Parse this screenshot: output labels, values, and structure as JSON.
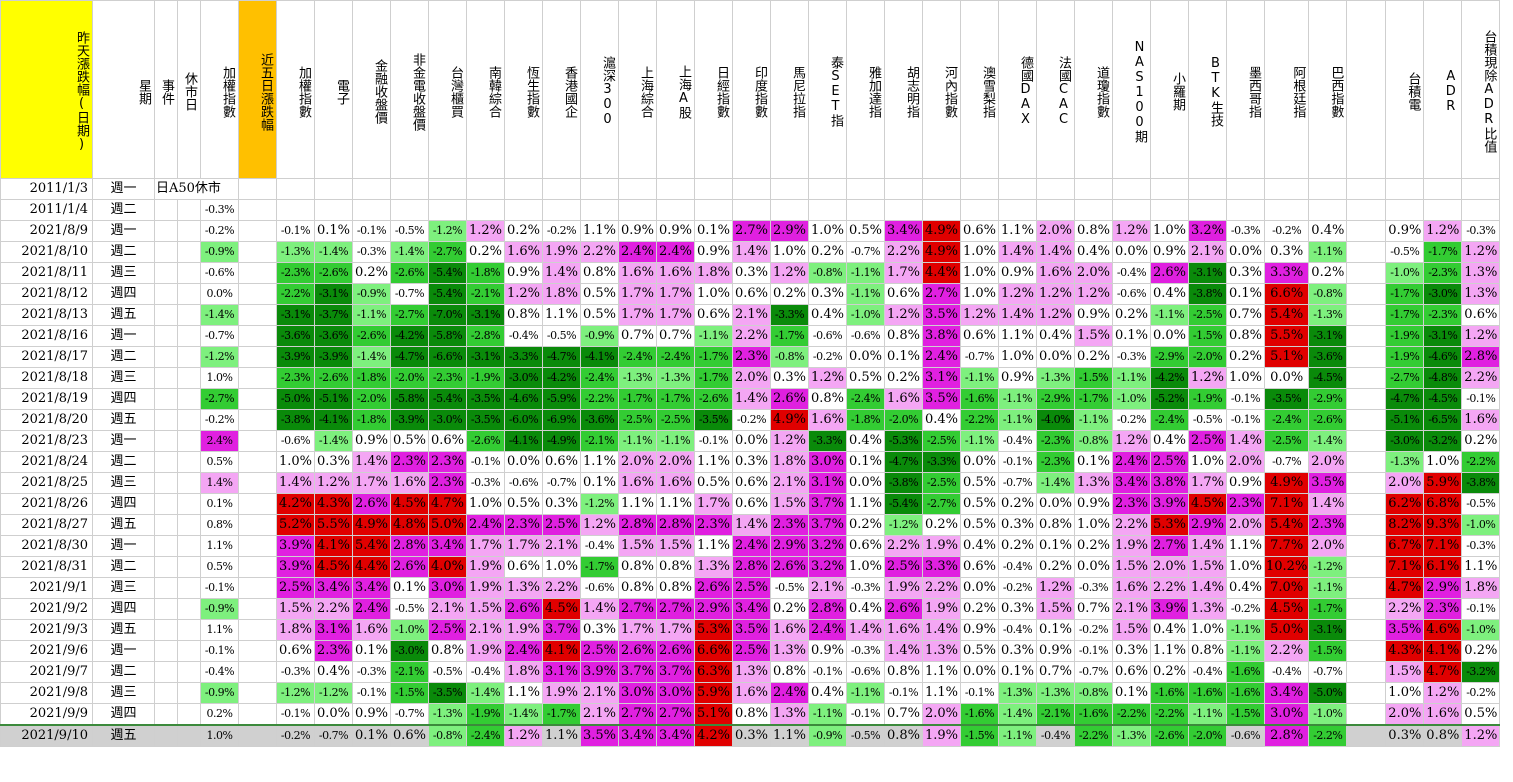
{
  "colors": {
    "red": "#ff0000",
    "dark_red": "#e00000",
    "magenta": "#e020e0",
    "pink": "#f4a6f4",
    "light_green": "#7ef07e",
    "green": "#33cc33",
    "dark_green": "#0a8a0a",
    "yellow_header": "#ffff00",
    "orange_header": "#ffc000",
    "gray_row": "#d0d0d0"
  },
  "headers": [
    "昨天漲跌幅(日期)",
    "星期",
    "事件",
    "休市日",
    "加權指數",
    "近五日漲跌幅",
    "加權指數",
    "電子",
    "金融收盤價",
    "非金電收盤價",
    "台灣櫃買",
    "南韓綜合",
    "恆生指數",
    "香港國企",
    "滬深300",
    "上海綜合",
    "上海A股",
    "日經指數",
    "印度指數",
    "馬尼拉指",
    "泰SET指",
    "雅加達指",
    "胡志明指",
    "河內指數",
    "澳雪梨指",
    "德國DAX",
    "法國CAC",
    "道瓊指數",
    "NAS100期",
    "小羅期",
    "BTK生技",
    "墨西哥指",
    "阿根廷指",
    "巴西指數",
    "",
    "台積電",
    "ADR",
    "台積現除ADR比值"
  ],
  "rows": [
    {
      "date": "2011/1/3",
      "wd": "週一",
      "event": "日A50休市",
      "idx": "",
      "vals": []
    },
    {
      "date": "2011/1/4",
      "wd": "週二",
      "event": "",
      "idx": "-0.3%",
      "vals": []
    },
    {
      "date": "2021/8/9",
      "wd": "週一",
      "event": "",
      "idx": "-0.2%",
      "vals": [
        "-0.1%",
        "0.1%",
        "-0.1%",
        "-0.5%",
        "-1.2%",
        "1.2%",
        "0.2%",
        "-0.2%",
        "1.1%",
        "0.9%",
        "0.9%",
        "0.1%",
        "2.7%",
        "2.9%",
        "1.0%",
        "0.5%",
        "3.4%",
        "4.9%",
        "0.6%",
        "1.1%",
        "2.0%",
        "0.8%",
        "1.2%",
        "1.0%",
        "3.2%",
        "-0.3%",
        "-0.2%",
        "0.4%",
        "",
        "0.9%",
        "1.2%",
        "-0.3%"
      ]
    },
    {
      "date": "2021/8/10",
      "wd": "週二",
      "event": "",
      "idx": "-0.9%",
      "vals": [
        "-1.3%",
        "-1.4%",
        "-0.3%",
        "-1.4%",
        "-2.7%",
        "0.2%",
        "1.6%",
        "1.9%",
        "2.2%",
        "2.4%",
        "2.4%",
        "0.9%",
        "1.4%",
        "1.0%",
        "0.2%",
        "-0.7%",
        "2.2%",
        "4.9%",
        "1.0%",
        "1.4%",
        "1.4%",
        "0.4%",
        "0.0%",
        "0.9%",
        "2.1%",
        "0.0%",
        "0.3%",
        "-1.1%",
        "",
        "-0.5%",
        "-1.7%",
        "1.2%"
      ]
    },
    {
      "date": "2021/8/11",
      "wd": "週三",
      "event": "",
      "idx": "-0.6%",
      "vals": [
        "-2.3%",
        "-2.6%",
        "0.2%",
        "-2.6%",
        "-5.4%",
        "-1.8%",
        "0.9%",
        "1.4%",
        "0.8%",
        "1.6%",
        "1.6%",
        "1.8%",
        "0.3%",
        "1.2%",
        "-0.8%",
        "-1.1%",
        "1.7%",
        "4.4%",
        "1.0%",
        "0.9%",
        "1.6%",
        "2.0%",
        "-0.4%",
        "2.6%",
        "-3.1%",
        "0.3%",
        "3.3%",
        "0.2%",
        "",
        "-1.0%",
        "-2.3%",
        "1.3%"
      ]
    },
    {
      "date": "2021/8/12",
      "wd": "週四",
      "event": "",
      "idx": "0.0%",
      "vals": [
        "-2.2%",
        "-3.1%",
        "-0.9%",
        "-0.7%",
        "-5.4%",
        "-2.1%",
        "1.2%",
        "1.8%",
        "0.5%",
        "1.7%",
        "1.7%",
        "1.0%",
        "0.6%",
        "0.2%",
        "0.3%",
        "-1.1%",
        "0.6%",
        "2.7%",
        "1.0%",
        "1.2%",
        "1.2%",
        "1.2%",
        "-0.6%",
        "0.4%",
        "-3.8%",
        "0.1%",
        "6.6%",
        "-0.8%",
        "",
        "-1.7%",
        "-3.0%",
        "1.3%"
      ]
    },
    {
      "date": "2021/8/13",
      "wd": "週五",
      "event": "",
      "idx": "-1.4%",
      "vals": [
        "-3.1%",
        "-3.7%",
        "-1.1%",
        "-2.7%",
        "-7.0%",
        "-3.1%",
        "0.8%",
        "1.1%",
        "0.5%",
        "1.7%",
        "1.7%",
        "0.6%",
        "2.1%",
        "-3.3%",
        "0.4%",
        "-1.0%",
        "1.2%",
        "3.5%",
        "1.2%",
        "1.4%",
        "1.2%",
        "0.9%",
        "0.2%",
        "-1.1%",
        "-2.5%",
        "0.7%",
        "5.4%",
        "-1.3%",
        "",
        "-1.7%",
        "-2.3%",
        "0.6%"
      ]
    },
    {
      "date": "2021/8/16",
      "wd": "週一",
      "event": "",
      "idx": "-0.7%",
      "vals": [
        "-3.6%",
        "-3.6%",
        "-2.6%",
        "-4.2%",
        "-5.8%",
        "-2.8%",
        "-0.4%",
        "-0.5%",
        "-0.9%",
        "0.7%",
        "0.7%",
        "-1.1%",
        "2.2%",
        "-1.7%",
        "-0.6%",
        "-0.6%",
        "0.8%",
        "3.8%",
        "0.6%",
        "1.1%",
        "0.4%",
        "1.5%",
        "0.1%",
        "0.0%",
        "-1.5%",
        "0.8%",
        "5.5%",
        "-3.1%",
        "",
        "-1.9%",
        "-3.1%",
        "1.2%"
      ]
    },
    {
      "date": "2021/8/17",
      "wd": "週二",
      "event": "",
      "idx": "-1.2%",
      "vals": [
        "-3.9%",
        "-3.9%",
        "-1.4%",
        "-4.7%",
        "-6.6%",
        "-3.1%",
        "-3.3%",
        "-4.7%",
        "-4.1%",
        "-2.4%",
        "-2.4%",
        "-1.7%",
        "2.3%",
        "-0.8%",
        "-0.2%",
        "0.0%",
        "0.1%",
        "2.4%",
        "-0.7%",
        "1.0%",
        "0.0%",
        "0.2%",
        "-0.3%",
        "-2.9%",
        "-2.0%",
        "0.2%",
        "5.1%",
        "-3.6%",
        "",
        "-1.9%",
        "-4.6%",
        "2.8%"
      ]
    },
    {
      "date": "2021/8/18",
      "wd": "週三",
      "event": "",
      "idx": "1.0%",
      "vals": [
        "-2.3%",
        "-2.6%",
        "-1.8%",
        "-2.0%",
        "-2.3%",
        "-1.9%",
        "-3.0%",
        "-4.2%",
        "-2.4%",
        "-1.3%",
        "-1.3%",
        "-1.7%",
        "2.0%",
        "0.3%",
        "1.2%",
        "0.5%",
        "0.2%",
        "3.1%",
        "-1.1%",
        "0.9%",
        "-1.3%",
        "-1.5%",
        "-1.1%",
        "-4.2%",
        "1.2%",
        "1.0%",
        "0.0%",
        "-4.5%",
        "",
        "-2.7%",
        "-4.8%",
        "2.2%"
      ]
    },
    {
      "date": "2021/8/19",
      "wd": "週四",
      "event": "",
      "idx": "-2.7%",
      "vals": [
        "-5.0%",
        "-5.1%",
        "-2.0%",
        "-5.8%",
        "-5.4%",
        "-3.5%",
        "-4.6%",
        "-5.9%",
        "-2.2%",
        "-1.7%",
        "-1.7%",
        "-2.6%",
        "1.4%",
        "2.6%",
        "0.8%",
        "-2.4%",
        "1.6%",
        "3.5%",
        "-1.6%",
        "-1.1%",
        "-2.9%",
        "-1.7%",
        "-1.0%",
        "-5.2%",
        "-1.9%",
        "-0.1%",
        "-3.5%",
        "-2.9%",
        "",
        "-4.7%",
        "-4.5%",
        "-0.1%"
      ]
    },
    {
      "date": "2021/8/20",
      "wd": "週五",
      "event": "",
      "idx": "-0.2%",
      "vals": [
        "-3.8%",
        "-4.1%",
        "-1.8%",
        "-3.9%",
        "-3.0%",
        "-3.5%",
        "-6.0%",
        "-6.9%",
        "-3.6%",
        "-2.5%",
        "-2.5%",
        "-3.5%",
        "-0.2%",
        "4.9%",
        "1.6%",
        "-1.8%",
        "-2.0%",
        "0.4%",
        "-2.2%",
        "-1.1%",
        "-4.0%",
        "-1.1%",
        "-0.2%",
        "-2.4%",
        "-0.5%",
        "-0.1%",
        "-2.4%",
        "-2.6%",
        "",
        "-5.1%",
        "-6.5%",
        "1.6%"
      ]
    },
    {
      "date": "2021/8/23",
      "wd": "週一",
      "event": "",
      "idx": "2.4%",
      "vals": [
        "-0.6%",
        "-1.4%",
        "0.9%",
        "0.5%",
        "0.6%",
        "-2.6%",
        "-4.1%",
        "-4.9%",
        "-2.1%",
        "-1.1%",
        "-1.1%",
        "-0.1%",
        "0.0%",
        "1.2%",
        "-3.3%",
        "0.4%",
        "-5.3%",
        "-2.5%",
        "-1.1%",
        "-0.4%",
        "-2.3%",
        "-0.8%",
        "1.2%",
        "0.4%",
        "2.5%",
        "1.4%",
        "-2.5%",
        "-1.4%",
        "",
        "-3.0%",
        "-3.2%",
        "0.2%"
      ]
    },
    {
      "date": "2021/8/24",
      "wd": "週二",
      "event": "",
      "idx": "0.5%",
      "vals": [
        "1.0%",
        "0.3%",
        "1.4%",
        "2.3%",
        "2.3%",
        "-0.1%",
        "0.0%",
        "0.6%",
        "1.1%",
        "2.0%",
        "2.0%",
        "1.1%",
        "0.3%",
        "1.8%",
        "3.0%",
        "0.1%",
        "-4.7%",
        "-3.3%",
        "0.0%",
        "-0.1%",
        "-2.3%",
        "0.1%",
        "2.4%",
        "2.5%",
        "1.0%",
        "2.0%",
        "-0.7%",
        "2.0%",
        "",
        "-1.3%",
        "1.0%",
        "-2.2%"
      ]
    },
    {
      "date": "2021/8/25",
      "wd": "週三",
      "event": "",
      "idx": "1.4%",
      "vals": [
        "1.4%",
        "1.2%",
        "1.7%",
        "1.6%",
        "2.3%",
        "-0.3%",
        "-0.6%",
        "-0.7%",
        "0.1%",
        "1.6%",
        "1.6%",
        "0.5%",
        "0.6%",
        "2.1%",
        "3.1%",
        "0.0%",
        "-3.8%",
        "-2.5%",
        "0.5%",
        "-0.7%",
        "-1.4%",
        "1.3%",
        "3.4%",
        "3.8%",
        "1.7%",
        "0.9%",
        "4.9%",
        "3.5%",
        "",
        "2.0%",
        "5.9%",
        "-3.8%"
      ]
    },
    {
      "date": "2021/8/26",
      "wd": "週四",
      "event": "",
      "idx": "0.1%",
      "vals": [
        "4.2%",
        "4.3%",
        "2.6%",
        "4.5%",
        "4.7%",
        "1.0%",
        "0.5%",
        "0.3%",
        "-1.2%",
        "1.1%",
        "1.1%",
        "1.7%",
        "0.6%",
        "1.5%",
        "3.7%",
        "1.1%",
        "-5.4%",
        "-2.7%",
        "0.5%",
        "0.2%",
        "0.0%",
        "0.9%",
        "2.3%",
        "3.9%",
        "4.5%",
        "2.3%",
        "7.1%",
        "1.4%",
        "",
        "6.2%",
        "6.8%",
        "-0.5%"
      ]
    },
    {
      "date": "2021/8/27",
      "wd": "週五",
      "event": "",
      "idx": "0.8%",
      "vals": [
        "5.2%",
        "5.5%",
        "4.9%",
        "4.8%",
        "5.0%",
        "2.4%",
        "2.3%",
        "2.5%",
        "1.2%",
        "2.8%",
        "2.8%",
        "2.3%",
        "1.4%",
        "2.3%",
        "3.7%",
        "0.2%",
        "-1.2%",
        "0.2%",
        "0.5%",
        "0.3%",
        "0.8%",
        "1.0%",
        "2.2%",
        "5.3%",
        "2.9%",
        "2.0%",
        "5.4%",
        "2.3%",
        "",
        "8.2%",
        "9.3%",
        "-1.0%"
      ]
    },
    {
      "date": "2021/8/30",
      "wd": "週一",
      "event": "",
      "idx": "1.1%",
      "vals": [
        "3.9%",
        "4.1%",
        "5.4%",
        "2.8%",
        "3.4%",
        "1.7%",
        "1.7%",
        "2.1%",
        "-0.4%",
        "1.5%",
        "1.5%",
        "1.1%",
        "2.4%",
        "2.9%",
        "3.2%",
        "0.6%",
        "2.2%",
        "1.9%",
        "0.4%",
        "0.2%",
        "0.1%",
        "0.2%",
        "1.9%",
        "2.7%",
        "1.4%",
        "1.1%",
        "7.7%",
        "2.0%",
        "",
        "6.7%",
        "7.1%",
        "-0.3%"
      ]
    },
    {
      "date": "2021/8/31",
      "wd": "週二",
      "event": "",
      "idx": "0.5%",
      "vals": [
        "3.9%",
        "4.5%",
        "4.4%",
        "2.6%",
        "4.0%",
        "1.9%",
        "0.6%",
        "1.0%",
        "-1.7%",
        "0.8%",
        "0.8%",
        "1.3%",
        "2.8%",
        "2.6%",
        "3.2%",
        "1.0%",
        "2.5%",
        "3.3%",
        "0.6%",
        "-0.4%",
        "0.2%",
        "0.0%",
        "1.5%",
        "2.0%",
        "1.5%",
        "1.0%",
        "10.2%",
        "-1.2%",
        "",
        "7.1%",
        "6.1%",
        "1.1%"
      ]
    },
    {
      "date": "2021/9/1",
      "wd": "週三",
      "event": "",
      "idx": "-0.1%",
      "vals": [
        "2.5%",
        "3.4%",
        "3.4%",
        "0.1%",
        "3.0%",
        "1.9%",
        "1.3%",
        "2.2%",
        "-0.6%",
        "0.8%",
        "0.8%",
        "2.6%",
        "2.5%",
        "-0.5%",
        "2.1%",
        "-0.3%",
        "1.9%",
        "2.2%",
        "0.0%",
        "-0.2%",
        "1.2%",
        "-0.3%",
        "1.6%",
        "2.2%",
        "1.4%",
        "0.4%",
        "7.0%",
        "-1.1%",
        "",
        "4.7%",
        "2.9%",
        "1.8%"
      ]
    },
    {
      "date": "2021/9/2",
      "wd": "週四",
      "event": "",
      "idx": "-0.9%",
      "vals": [
        "1.5%",
        "2.2%",
        "2.4%",
        "-0.5%",
        "2.1%",
        "1.5%",
        "2.6%",
        "4.5%",
        "1.4%",
        "2.7%",
        "2.7%",
        "2.9%",
        "3.4%",
        "0.2%",
        "2.8%",
        "0.4%",
        "2.6%",
        "1.9%",
        "0.2%",
        "0.3%",
        "1.5%",
        "0.7%",
        "2.1%",
        "3.9%",
        "1.3%",
        "-0.2%",
        "4.5%",
        "-1.7%",
        "",
        "2.2%",
        "2.3%",
        "-0.1%"
      ]
    },
    {
      "date": "2021/9/3",
      "wd": "週五",
      "event": "",
      "idx": "1.1%",
      "vals": [
        "1.8%",
        "3.1%",
        "1.6%",
        "-1.0%",
        "2.5%",
        "2.1%",
        "1.9%",
        "3.7%",
        "0.3%",
        "1.7%",
        "1.7%",
        "5.3%",
        "3.5%",
        "1.6%",
        "2.4%",
        "1.4%",
        "1.6%",
        "1.4%",
        "0.9%",
        "-0.4%",
        "0.1%",
        "-0.2%",
        "1.5%",
        "0.4%",
        "1.0%",
        "-1.1%",
        "5.0%",
        "-3.1%",
        "",
        "3.5%",
        "4.6%",
        "-1.0%"
      ]
    },
    {
      "date": "2021/9/6",
      "wd": "週一",
      "event": "",
      "idx": "-0.1%",
      "vals": [
        "0.6%",
        "2.3%",
        "0.1%",
        "-3.0%",
        "0.8%",
        "1.9%",
        "2.4%",
        "4.1%",
        "2.5%",
        "2.6%",
        "2.6%",
        "6.6%",
        "2.5%",
        "1.3%",
        "0.9%",
        "-0.3%",
        "1.4%",
        "1.3%",
        "0.5%",
        "0.3%",
        "0.9%",
        "-0.1%",
        "0.3%",
        "1.1%",
        "0.8%",
        "-1.1%",
        "2.2%",
        "-1.5%",
        "",
        "4.3%",
        "4.1%",
        "0.2%"
      ]
    },
    {
      "date": "2021/9/7",
      "wd": "週二",
      "event": "",
      "idx": "-0.4%",
      "vals": [
        "-0.3%",
        "0.4%",
        "-0.3%",
        "-2.1%",
        "-0.5%",
        "-0.4%",
        "1.8%",
        "3.1%",
        "3.9%",
        "3.7%",
        "3.7%",
        "6.3%",
        "1.3%",
        "0.8%",
        "-0.1%",
        "-0.6%",
        "0.8%",
        "1.1%",
        "0.0%",
        "0.1%",
        "0.7%",
        "-0.7%",
        "0.6%",
        "0.2%",
        "-0.4%",
        "-1.6%",
        "-0.4%",
        "-0.7%",
        "",
        "1.5%",
        "4.7%",
        "-3.2%"
      ]
    },
    {
      "date": "2021/9/8",
      "wd": "週三",
      "event": "",
      "idx": "-0.9%",
      "vals": [
        "-1.2%",
        "-1.2%",
        "-0.1%",
        "-1.5%",
        "-3.5%",
        "-1.4%",
        "1.1%",
        "1.9%",
        "2.1%",
        "3.0%",
        "3.0%",
        "5.9%",
        "1.6%",
        "2.4%",
        "0.4%",
        "-1.1%",
        "-0.1%",
        "1.1%",
        "-0.1%",
        "-1.3%",
        "-1.3%",
        "-0.8%",
        "0.1%",
        "-1.6%",
        "-1.6%",
        "-1.6%",
        "3.4%",
        "-5.0%",
        "",
        "1.0%",
        "1.2%",
        "-0.2%"
      ]
    },
    {
      "date": "2021/9/9",
      "wd": "週四",
      "event": "",
      "idx": "0.2%",
      "vals": [
        "-0.1%",
        "0.0%",
        "0.9%",
        "-0.7%",
        "-1.3%",
        "-1.9%",
        "-1.4%",
        "-1.7%",
        "2.1%",
        "2.7%",
        "2.7%",
        "5.1%",
        "0.8%",
        "1.3%",
        "-1.1%",
        "-0.1%",
        "0.7%",
        "2.0%",
        "-1.6%",
        "-1.4%",
        "-2.1%",
        "-1.6%",
        "-2.2%",
        "-2.2%",
        "-1.1%",
        "-1.5%",
        "3.0%",
        "-1.0%",
        "",
        "2.0%",
        "1.6%",
        "0.5%"
      ]
    },
    {
      "date": "2021/9/10",
      "wd": "週五",
      "event": "",
      "idx": "1.0%",
      "vals": [
        "-0.2%",
        "-0.7%",
        "0.1%",
        "0.6%",
        "-0.8%",
        "-2.4%",
        "1.2%",
        "1.1%",
        "3.5%",
        "3.4%",
        "3.4%",
        "4.2%",
        "0.3%",
        "1.1%",
        "-0.9%",
        "-0.5%",
        "0.8%",
        "1.9%",
        "-1.5%",
        "-1.1%",
        "-0.4%",
        "-2.2%",
        "-1.3%",
        "-2.6%",
        "-2.0%",
        "-0.6%",
        "2.8%",
        "-2.2%",
        "",
        "0.3%",
        "0.8%",
        "1.2%"
      ]
    }
  ]
}
